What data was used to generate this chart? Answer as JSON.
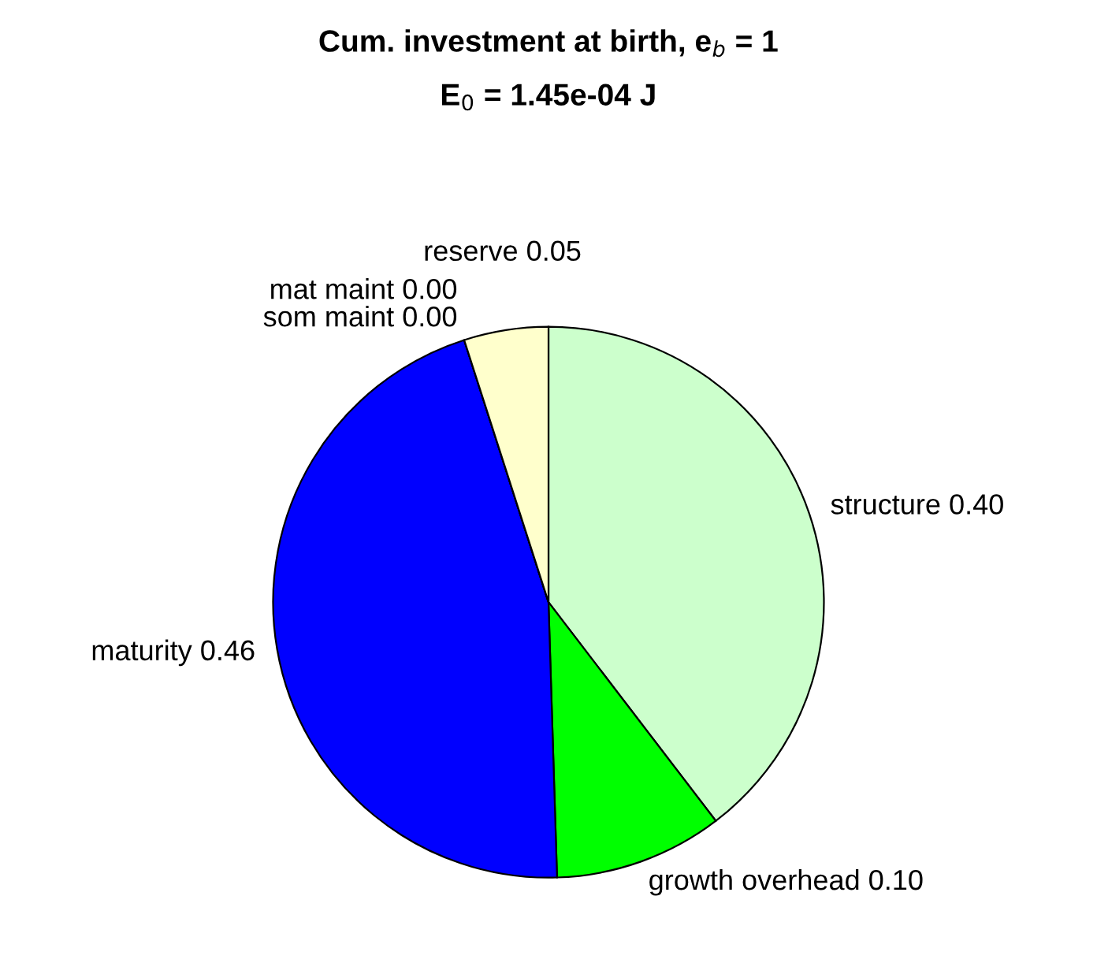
{
  "chart_data": {
    "type": "pie",
    "title": "Cum. investment at birth, e$_{b}$ = 1",
    "subtitle": "E$_{0}$ = 1.45e-04 J",
    "categories": [
      "structure",
      "growth overhead",
      "maturity",
      "som maint",
      "mat maint",
      "reserve"
    ],
    "values": [
      0.4,
      0.1,
      0.46,
      0.0,
      0.0,
      0.05
    ],
    "value_labels": [
      "0.40",
      "0.10",
      "0.46",
      "0.00",
      "0.00",
      "0.05"
    ],
    "colors": [
      "#ccffcc",
      "#00ff00",
      "#0000ff",
      "#ff0000",
      "#ff00ff",
      "#ffffcc"
    ]
  }
}
